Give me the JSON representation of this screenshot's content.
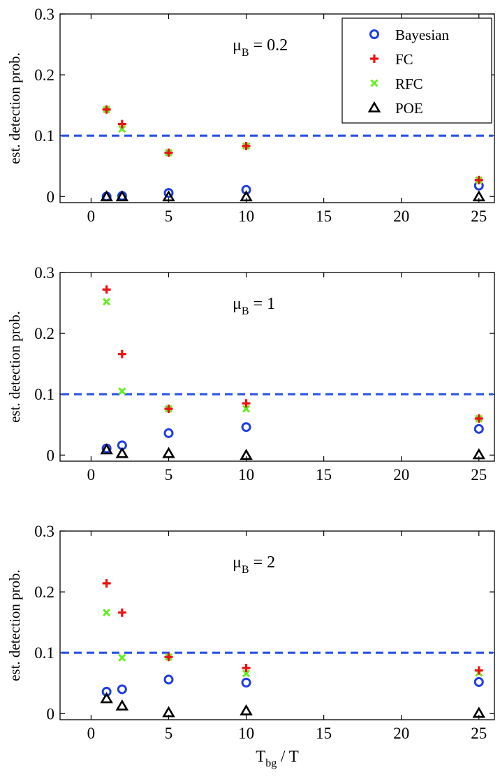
{
  "chart_data": [
    {
      "type": "scatter",
      "annotation": {
        "prefix": "μ",
        "subscript": "B",
        "suffix": " = 0.2"
      },
      "ylabel": "est. detection prob.",
      "xlabel": "",
      "xlim": [
        -2,
        26
      ],
      "ylim": [
        -0.01,
        0.3
      ],
      "xticks": [
        0,
        5,
        10,
        15,
        20,
        25
      ],
      "yticks": [
        0,
        0.1,
        0.2,
        0.3
      ],
      "ytick_labels": [
        "0",
        "0.1",
        "0.2",
        "0.3"
      ],
      "reference_line": {
        "y": 0.1,
        "style": "dashed"
      },
      "legend": {
        "position": "top-right",
        "entries": [
          "Bayesian",
          "FC",
          "RFC",
          "POE"
        ]
      },
      "series": [
        {
          "name": "Bayesian",
          "x": [
            1,
            2,
            5,
            10,
            25
          ],
          "y": [
            0.0,
            0.001,
            0.006,
            0.011,
            0.018
          ]
        },
        {
          "name": "FC",
          "x": [
            1,
            2,
            5,
            10,
            25
          ],
          "y": [
            0.143,
            0.119,
            0.072,
            0.083,
            0.027
          ]
        },
        {
          "name": "RFC",
          "x": [
            1,
            2,
            5,
            10,
            25
          ],
          "y": [
            0.143,
            0.111,
            0.072,
            0.083,
            0.027
          ]
        },
        {
          "name": "POE",
          "x": [
            1,
            2,
            5,
            10,
            25
          ],
          "y": [
            0.0,
            0.0,
            0.0,
            0.0,
            0.0
          ]
        }
      ]
    },
    {
      "type": "scatter",
      "annotation": {
        "prefix": "μ",
        "subscript": "B",
        "suffix": " = 1"
      },
      "ylabel": "est. detection prob.",
      "xlabel": "",
      "xlim": [
        -2,
        26
      ],
      "ylim": [
        -0.01,
        0.3
      ],
      "xticks": [
        0,
        5,
        10,
        15,
        20,
        25
      ],
      "yticks": [
        0,
        0.1,
        0.2,
        0.3
      ],
      "ytick_labels": [
        "0",
        "0.1",
        "0.2",
        "0.3"
      ],
      "reference_line": {
        "y": 0.1,
        "style": "dashed"
      },
      "series": [
        {
          "name": "Bayesian",
          "x": [
            1,
            2,
            5,
            10,
            25
          ],
          "y": [
            0.011,
            0.016,
            0.036,
            0.046,
            0.043
          ]
        },
        {
          "name": "FC",
          "x": [
            1,
            2,
            5,
            10,
            25
          ],
          "y": [
            0.272,
            0.166,
            0.076,
            0.085,
            0.06
          ]
        },
        {
          "name": "RFC",
          "x": [
            1,
            2,
            5,
            10,
            25
          ],
          "y": [
            0.252,
            0.105,
            0.076,
            0.076,
            0.06
          ]
        },
        {
          "name": "POE",
          "x": [
            1,
            2,
            5,
            10,
            25
          ],
          "y": [
            0.009,
            0.003,
            0.003,
            0.0,
            0.001
          ]
        }
      ]
    },
    {
      "type": "scatter",
      "annotation": {
        "prefix": "μ",
        "subscript": "B",
        "suffix": " = 2"
      },
      "ylabel": "est. detection prob.",
      "xlabel_main": "T",
      "xlabel_sub": "bg",
      "xlabel_suffix": " / T",
      "xlim": [
        -2,
        26
      ],
      "ylim": [
        -0.01,
        0.3
      ],
      "xticks": [
        0,
        5,
        10,
        15,
        20,
        25
      ],
      "yticks": [
        0,
        0.1,
        0.2,
        0.3
      ],
      "ytick_labels": [
        "0",
        "0.1",
        "0.2",
        "0.3"
      ],
      "reference_line": {
        "y": 0.1,
        "style": "dashed"
      },
      "series": [
        {
          "name": "Bayesian",
          "x": [
            1,
            2,
            5,
            10,
            25
          ],
          "y": [
            0.036,
            0.04,
            0.056,
            0.051,
            0.052
          ]
        },
        {
          "name": "FC",
          "x": [
            1,
            2,
            5,
            10,
            25
          ],
          "y": [
            0.214,
            0.166,
            0.093,
            0.075,
            0.071
          ]
        },
        {
          "name": "RFC",
          "x": [
            1,
            2,
            5,
            10,
            25
          ],
          "y": [
            0.166,
            0.092,
            0.093,
            0.066,
            0.067
          ]
        },
        {
          "name": "POE",
          "x": [
            1,
            2,
            5,
            10,
            25
          ],
          "y": [
            0.025,
            0.013,
            0.002,
            0.005,
            0.001
          ]
        }
      ]
    }
  ],
  "colors": {
    "Bayesian": "#1f3fe0",
    "FC": "#ee1111",
    "RFC": "#66ee22",
    "POE": "#000000",
    "reference_line": "#2a52e6",
    "axis": "#000000"
  },
  "markers": {
    "Bayesian": "circle-icon",
    "FC": "plus-icon",
    "RFC": "cross-icon",
    "POE": "triangle-icon"
  }
}
